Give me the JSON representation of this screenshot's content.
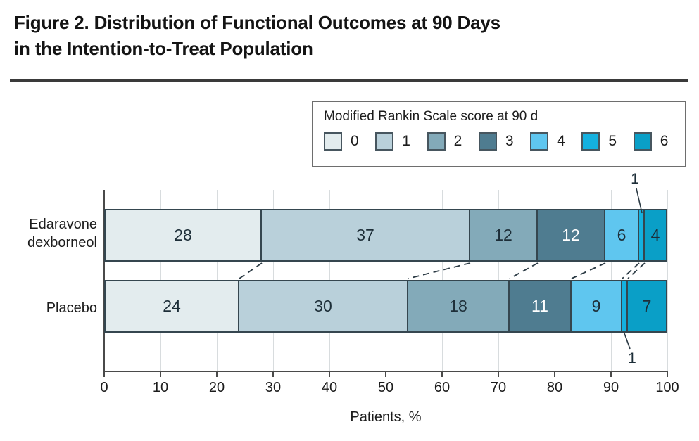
{
  "title": {
    "text": "Figure 2. Distribution of Functional Outcomes at 90 Days\nin the Intention-to-Treat Population"
  },
  "legend": {
    "title": "Modified Rankin Scale score at 90 d",
    "items": [
      {
        "label": "0",
        "color": "#e3ecee"
      },
      {
        "label": "1",
        "color": "#b9d0da"
      },
      {
        "label": "2",
        "color": "#83aab9"
      },
      {
        "label": "3",
        "color": "#4f7c90"
      },
      {
        "label": "4",
        "color": "#5fc6ef"
      },
      {
        "label": "5",
        "color": "#14b1e0"
      },
      {
        "label": "6",
        "color": "#0a9fc7"
      }
    ]
  },
  "chart_data": {
    "type": "bar",
    "orientation": "horizontal",
    "stacked": true,
    "title": "Figure 2. Distribution of Functional Outcomes at 90 Days in the Intention-to-Treat Population",
    "legend_title": "Modified Rankin Scale score at 90 d",
    "categories": [
      "Edaravone dexborneol",
      "Placebo"
    ],
    "categories_multiline": [
      "Edaravone\ndexborneol",
      "Placebo"
    ],
    "series": [
      {
        "name": "0",
        "color": "#e3ecee",
        "values": [
          28,
          24
        ]
      },
      {
        "name": "1",
        "color": "#b9d0da",
        "values": [
          37,
          30
        ]
      },
      {
        "name": "2",
        "color": "#83aab9",
        "values": [
          12,
          18
        ]
      },
      {
        "name": "3",
        "color": "#4f7c90",
        "values": [
          12,
          11
        ],
        "label_color": "#ffffff"
      },
      {
        "name": "4",
        "color": "#5fc6ef",
        "values": [
          6,
          9
        ]
      },
      {
        "name": "5",
        "color": "#14b1e0",
        "values": [
          1,
          1
        ],
        "callout": true
      },
      {
        "name": "6",
        "color": "#0a9fc7",
        "values": [
          4,
          7
        ]
      }
    ],
    "xlabel": "Patients, %",
    "x_ticks": [
      0,
      10,
      20,
      30,
      40,
      50,
      60,
      70,
      80,
      90,
      100
    ],
    "xlim": [
      0,
      100
    ],
    "grid": true,
    "legend_position": "top-right",
    "connectors_between_bars": true
  }
}
